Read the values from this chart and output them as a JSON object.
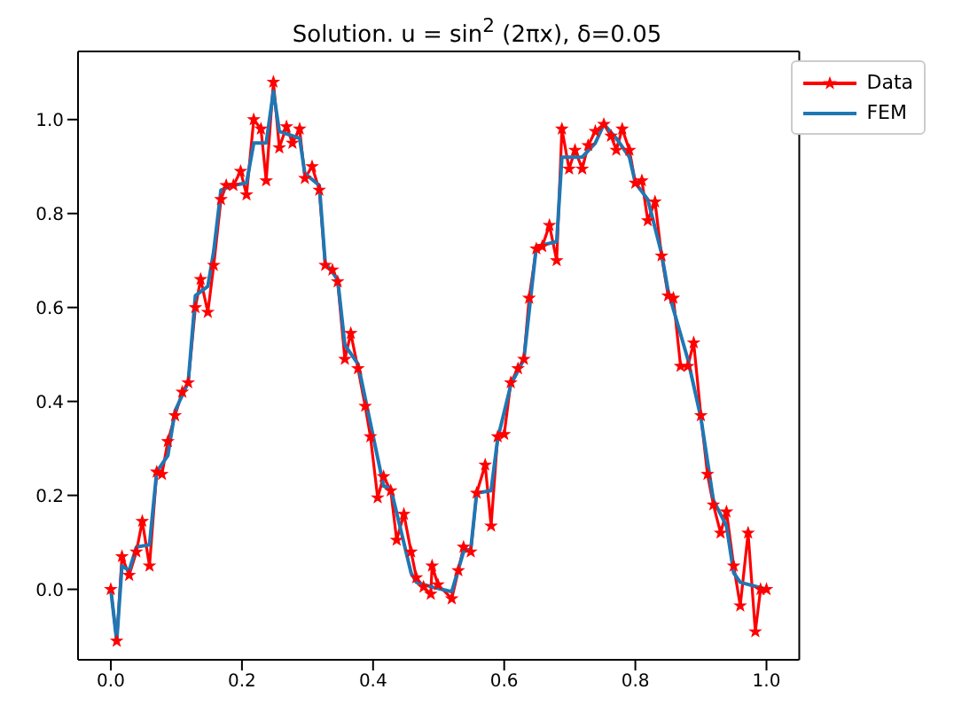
{
  "chart_data": {
    "type": "line",
    "title": "Solution. u = sin$^{2}$ (2πx), δ=0.05",
    "xlim": [
      -0.05,
      1.05
    ],
    "xticks": [
      {
        "value": 0,
        "label": "0.0"
      },
      {
        "value": 0.2,
        "label": "0.2"
      },
      {
        "value": 0.4,
        "label": "0.4"
      },
      {
        "value": 0.6,
        "label": "0.6"
      },
      {
        "value": 0.8,
        "label": "0.8"
      },
      {
        "value": 1,
        "label": "1.0"
      }
    ],
    "ylim": [
      -0.15,
      1.145
    ],
    "yticks": [
      {
        "value": 0,
        "label": "0.0"
      },
      {
        "value": 0.2,
        "label": "0.2"
      },
      {
        "value": 0.4,
        "label": "0.4"
      },
      {
        "value": 0.6,
        "label": "0.6"
      },
      {
        "value": 0.8,
        "label": "0.8"
      },
      {
        "value": 1,
        "label": "1.0"
      }
    ],
    "legend": "top right",
    "series": [
      {
        "name": "Data",
        "color": "#ff0000",
        "marker": "star",
        "x": [
          0,
          0.009,
          0.017,
          0.028,
          0.039,
          0.048,
          0.059,
          0.07,
          0.078,
          0.087,
          0.098,
          0.109,
          0.118,
          0.129,
          0.137,
          0.148,
          0.157,
          0.168,
          0.176,
          0.187,
          0.198,
          0.207,
          0.218,
          0.229,
          0.237,
          0.248,
          0.257,
          0.268,
          0.277,
          0.288,
          0.296,
          0.307,
          0.318,
          0.327,
          0.338,
          0.346,
          0.357,
          0.366,
          0.377,
          0.388,
          0.396,
          0.407,
          0.416,
          0.427,
          0.436,
          0.447,
          0.458,
          0.466,
          0.477,
          0.488,
          0.49,
          0.499,
          0.52,
          0.53,
          0.538,
          0.549,
          0.558,
          0.571,
          0.58,
          0.59,
          0.6,
          0.61,
          0.621,
          0.63,
          0.638,
          0.649,
          0.658,
          0.669,
          0.68,
          0.688,
          0.699,
          0.708,
          0.719,
          0.728,
          0.739,
          0.752,
          0.763,
          0.771,
          0.78,
          0.791,
          0.8,
          0.81,
          0.819,
          0.83,
          0.84,
          0.85,
          0.858,
          0.869,
          0.88,
          0.889,
          0.9,
          0.91,
          0.919,
          0.93,
          0.939,
          0.95,
          0.96,
          0.972,
          0.983,
          0.991,
          1
        ],
        "values": [
          0,
          -0.11,
          0.07,
          0.03,
          0.08,
          0.145,
          0.05,
          0.25,
          0.245,
          0.315,
          0.37,
          0.42,
          0.44,
          0.6,
          0.66,
          0.59,
          0.69,
          0.83,
          0.86,
          0.86,
          0.89,
          0.84,
          1.0,
          0.98,
          0.87,
          1.08,
          0.94,
          0.985,
          0.95,
          0.98,
          0.875,
          0.9,
          0.85,
          0.69,
          0.68,
          0.655,
          0.49,
          0.545,
          0.47,
          0.39,
          0.325,
          0.195,
          0.24,
          0.21,
          0.105,
          0.16,
          0.08,
          0.025,
          0.005,
          -0.01,
          0.05,
          0.01,
          -0.02,
          0.04,
          0.09,
          0.08,
          0.205,
          0.265,
          0.135,
          0.325,
          0.33,
          0.44,
          0.47,
          0.49,
          0.62,
          0.725,
          0.73,
          0.775,
          0.7,
          0.98,
          0.895,
          0.935,
          0.895,
          0.945,
          0.975,
          0.99,
          0.965,
          0.935,
          0.98,
          0.935,
          0.865,
          0.87,
          0.785,
          0.825,
          0.71,
          0.625,
          0.62,
          0.475,
          0.475,
          0.525,
          0.37,
          0.245,
          0.18,
          0.12,
          0.165,
          0.05,
          -0.035,
          0.12,
          -0.09,
          0,
          0
        ]
      },
      {
        "name": "FEM",
        "color": "#1f77b4",
        "marker": "none",
        "x": [
          0,
          0.009,
          0.017,
          0.028,
          0.039,
          0.059,
          0.07,
          0.087,
          0.098,
          0.118,
          0.129,
          0.148,
          0.157,
          0.168,
          0.187,
          0.207,
          0.218,
          0.237,
          0.248,
          0.257,
          0.288,
          0.296,
          0.318,
          0.327,
          0.346,
          0.357,
          0.377,
          0.416,
          0.427,
          0.458,
          0.466,
          0.49,
          0.52,
          0.538,
          0.549,
          0.558,
          0.58,
          0.59,
          0.61,
          0.63,
          0.649,
          0.68,
          0.688,
          0.719,
          0.739,
          0.752,
          0.771,
          0.791,
          0.8,
          0.819,
          0.84,
          0.85,
          0.88,
          0.9,
          0.919,
          0.939,
          0.95,
          0.96,
          1
        ],
        "values": [
          0,
          -0.11,
          0.05,
          0.04,
          0.09,
          0.095,
          0.25,
          0.285,
          0.38,
          0.44,
          0.625,
          0.645,
          0.72,
          0.85,
          0.86,
          0.865,
          0.95,
          0.95,
          1.06,
          0.975,
          0.96,
          0.885,
          0.86,
          0.695,
          0.66,
          0.52,
          0.48,
          0.22,
          0.215,
          0.035,
          0.015,
          0.005,
          -0.005,
          0.08,
          0.085,
          0.205,
          0.21,
          0.32,
          0.435,
          0.49,
          0.73,
          0.74,
          0.92,
          0.92,
          0.95,
          0.99,
          0.96,
          0.92,
          0.865,
          0.83,
          0.715,
          0.635,
          0.49,
          0.365,
          0.19,
          0.135,
          0.035,
          0.015,
          0
        ]
      }
    ]
  }
}
